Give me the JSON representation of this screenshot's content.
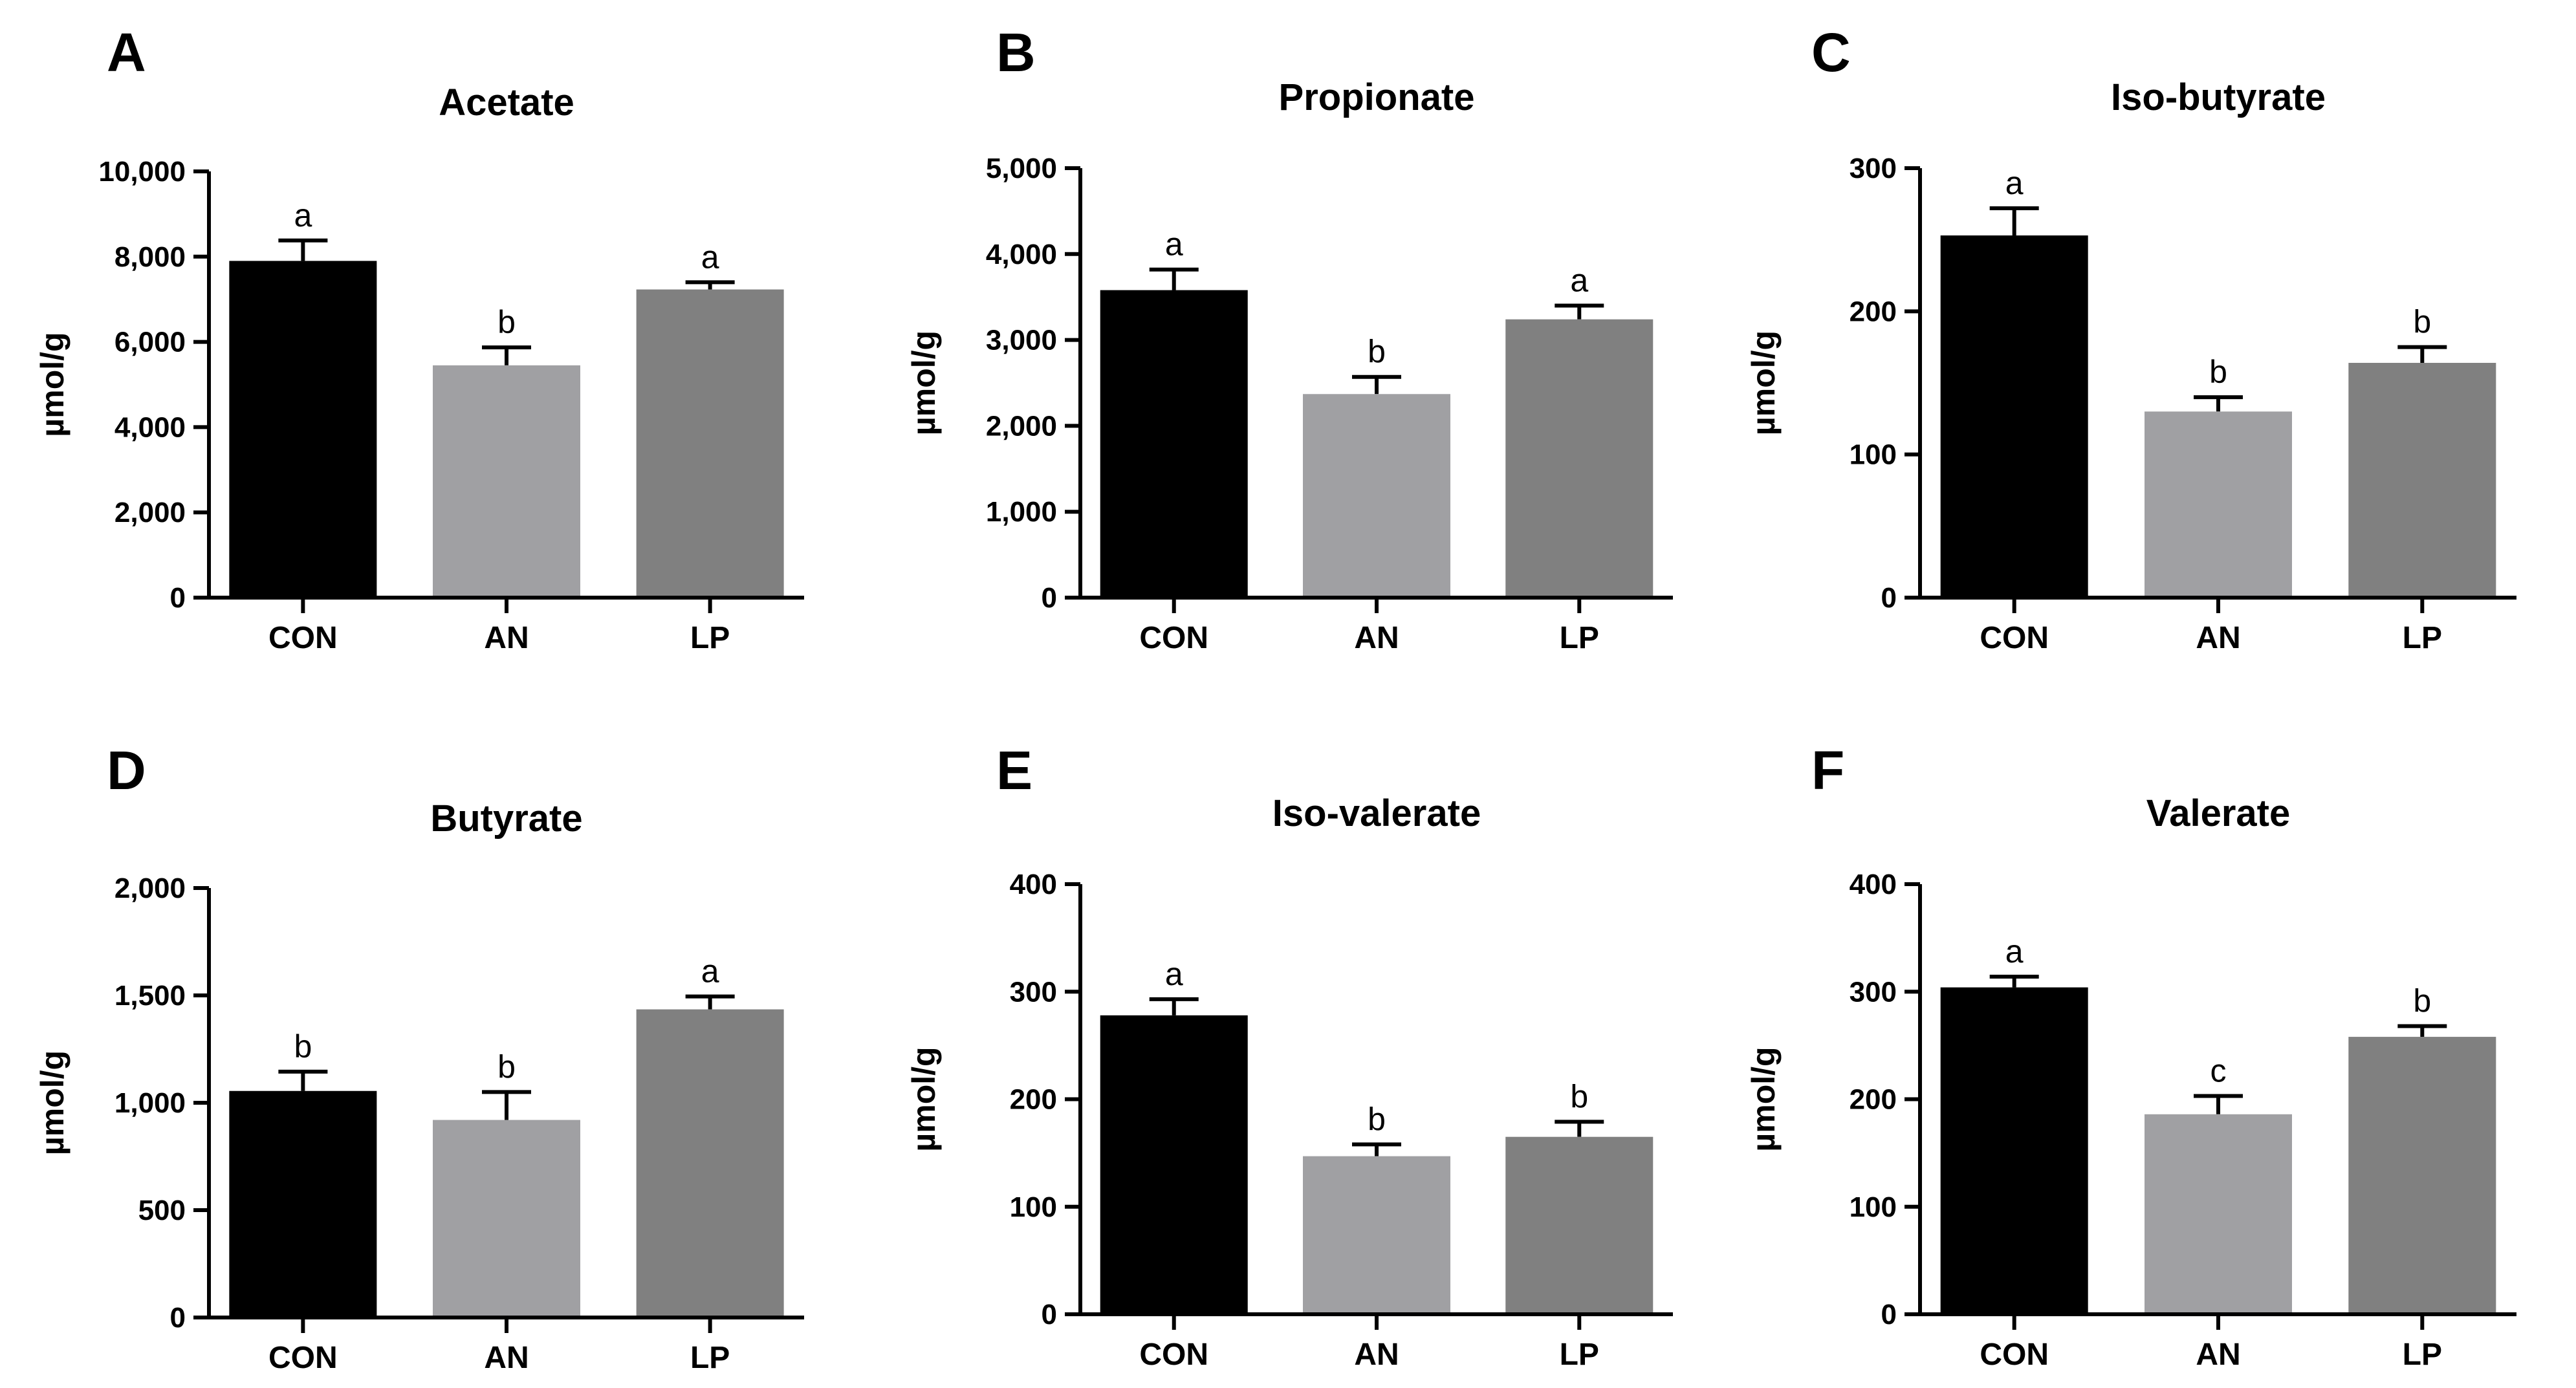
{
  "figure": {
    "y_unit_label": "µmol/g"
  },
  "colors": {
    "CON": "#000000",
    "AN": "#a0a0a3",
    "LP": "#808080"
  },
  "chart_data": [
    {
      "type": "bar",
      "panel": "A",
      "title": "Acetate",
      "ylabel": "µmol/g",
      "categories": [
        "CON",
        "AN",
        "LP"
      ],
      "values": [
        7900,
        5450,
        7230
      ],
      "errors": [
        480,
        420,
        170
      ],
      "significance": [
        "a",
        "b",
        "a"
      ],
      "ylim": [
        0,
        10000
      ],
      "yticks": [
        0,
        2000,
        4000,
        6000,
        8000,
        10000
      ],
      "ytick_labels": [
        "0",
        "2,000",
        "4,000",
        "6,000",
        "8,000",
        "10,000"
      ]
    },
    {
      "type": "bar",
      "panel": "B",
      "title": "Propionate",
      "ylabel": "µmol/g",
      "categories": [
        "CON",
        "AN",
        "LP"
      ],
      "values": [
        3580,
        2370,
        3240
      ],
      "errors": [
        240,
        200,
        160
      ],
      "significance": [
        "a",
        "b",
        "a"
      ],
      "ylim": [
        0,
        5000
      ],
      "yticks": [
        0,
        1000,
        2000,
        3000,
        4000,
        5000
      ],
      "ytick_labels": [
        "0",
        "1,000",
        "2,000",
        "3,000",
        "4,000",
        "5,000"
      ]
    },
    {
      "type": "bar",
      "panel": "C",
      "title": "Iso-butyrate",
      "ylabel": "µmol/g",
      "categories": [
        "CON",
        "AN",
        "LP"
      ],
      "values": [
        253,
        130,
        164
      ],
      "errors": [
        19,
        10,
        11
      ],
      "significance": [
        "a",
        "b",
        "b"
      ],
      "ylim": [
        0,
        300
      ],
      "yticks": [
        0,
        100,
        200,
        300
      ],
      "ytick_labels": [
        "0",
        "100",
        "200",
        "300"
      ]
    },
    {
      "type": "bar",
      "panel": "D",
      "title": "Butyrate",
      "ylabel": "µmol/g",
      "categories": [
        "CON",
        "AN",
        "LP"
      ],
      "values": [
        1055,
        920,
        1435
      ],
      "errors": [
        90,
        130,
        60
      ],
      "significance": [
        "b",
        "b",
        "a"
      ],
      "ylim": [
        0,
        2000
      ],
      "yticks": [
        0,
        500,
        1000,
        1500,
        2000
      ],
      "ytick_labels": [
        "0",
        "500",
        "1,000",
        "1,500",
        "2,000"
      ]
    },
    {
      "type": "bar",
      "panel": "E",
      "title": "Iso-valerate",
      "ylabel": "µmol/g",
      "categories": [
        "CON",
        "AN",
        "LP"
      ],
      "values": [
        278,
        147,
        165
      ],
      "errors": [
        15,
        11,
        14
      ],
      "significance": [
        "a",
        "b",
        "b"
      ],
      "ylim": [
        0,
        400
      ],
      "yticks": [
        0,
        100,
        200,
        300,
        400
      ],
      "ytick_labels": [
        "0",
        "100",
        "200",
        "300",
        "400"
      ]
    },
    {
      "type": "bar",
      "panel": "F",
      "title": "Valerate",
      "ylabel": "µmol/g",
      "categories": [
        "CON",
        "AN",
        "LP"
      ],
      "values": [
        304,
        186,
        258
      ],
      "errors": [
        10,
        17,
        10
      ],
      "significance": [
        "a",
        "c",
        "b"
      ],
      "ylim": [
        0,
        400
      ],
      "yticks": [
        0,
        100,
        200,
        300,
        400
      ],
      "ytick_labels": [
        "0",
        "100",
        "200",
        "300",
        "400"
      ]
    }
  ]
}
